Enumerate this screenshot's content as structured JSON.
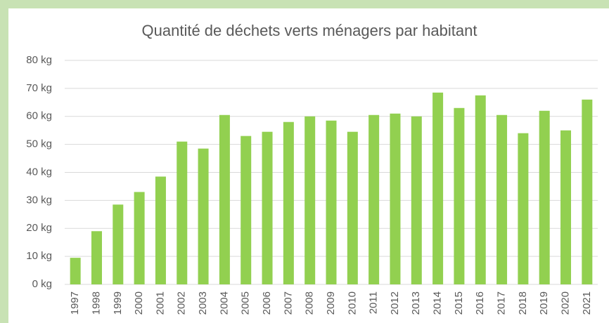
{
  "chart_data": {
    "type": "bar",
    "title": "Quantité de déchets verts ménagers par habitant",
    "categories": [
      "1997",
      "1998",
      "1999",
      "2000",
      "2001",
      "2002",
      "2003",
      "2004",
      "2005",
      "2006",
      "2007",
      "2008",
      "2009",
      "2010",
      "2011",
      "2012",
      "2013",
      "2014",
      "2015",
      "2016",
      "2017",
      "2018",
      "2019",
      "2020",
      "2021"
    ],
    "values": [
      9.5,
      19,
      28.5,
      33,
      38.5,
      51,
      48.5,
      60.5,
      53,
      54.5,
      58,
      60,
      58.5,
      54.5,
      60.5,
      61,
      60,
      68.5,
      63,
      67.5,
      60.5,
      54,
      62,
      55,
      66
    ],
    "color": "#92d050",
    "ylim": [
      0,
      80
    ],
    "yticks": [
      {
        "value": 0,
        "label": "0 kg"
      },
      {
        "value": 10,
        "label": "10 kg"
      },
      {
        "value": 20,
        "label": "20 kg"
      },
      {
        "value": 30,
        "label": "30 kg"
      },
      {
        "value": 40,
        "label": "40 kg"
      },
      {
        "value": 50,
        "label": "50 kg"
      },
      {
        "value": 60,
        "label": "60 kg"
      },
      {
        "value": 70,
        "label": "70 kg"
      },
      {
        "value": 80,
        "label": "80 kg"
      }
    ],
    "grid": true
  }
}
